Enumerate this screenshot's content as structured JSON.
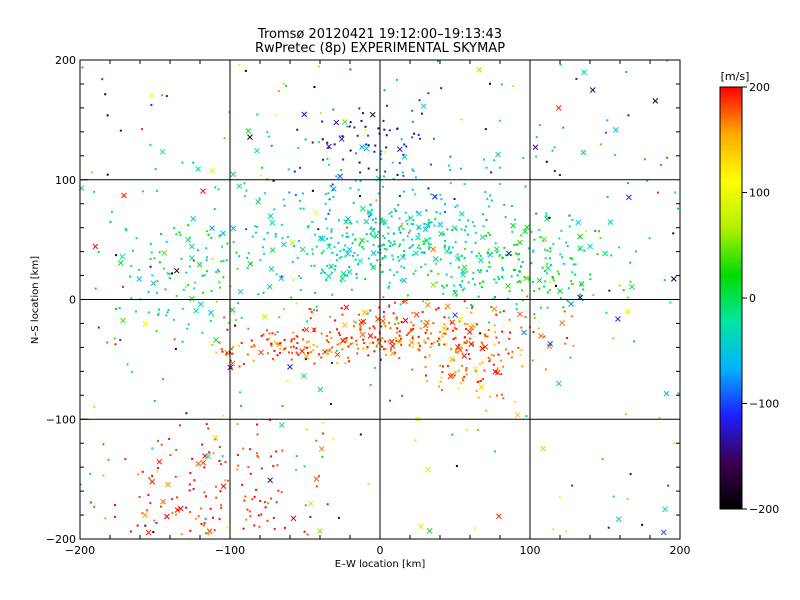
{
  "chart_data": {
    "type": "scatter",
    "title": "Tromsø 20120421 19:12:00–19:13:43",
    "subtitle": "RwPretec (8p) EXPERIMENTAL SKYMAP",
    "xlabel": "E–W location [km]",
    "ylabel": "N–S location [km]",
    "xlim": [
      -200,
      200
    ],
    "ylim": [
      -200,
      200
    ],
    "x_ticks": [
      "−200",
      "−100",
      "0",
      "100",
      "200"
    ],
    "y_ticks": [
      "200",
      "100",
      "0",
      "−100",
      "−200"
    ],
    "grid": true,
    "colorbar": {
      "label": "[m/s]",
      "range": [
        -200,
        200
      ],
      "ticks": [
        "200",
        "100",
        "0",
        "−100",
        "−200"
      ],
      "colormap": [
        "#000000",
        "#3b0050",
        "#1e1eff",
        "#00b4ff",
        "#00e6a0",
        "#00dc00",
        "#b4f000",
        "#ffff00",
        "#ffaa00",
        "#ff0000"
      ]
    },
    "clusters": [
      {
        "region": "north blue cluster",
        "x_center": -10,
        "y_center": 130,
        "x_spread": 30,
        "y_spread": 25,
        "velocity_mean": -120,
        "velocity_spread": 30
      },
      {
        "region": "central cyan band",
        "x_center": 0,
        "y_center": 45,
        "x_spread": 45,
        "y_spread": 25,
        "velocity_mean": -30,
        "velocity_spread": 20
      },
      {
        "region": "wide cyan area",
        "x_center": 0,
        "y_center": 60,
        "x_spread": 120,
        "y_spread": 60,
        "velocity_mean": -35,
        "velocity_spread": 25
      },
      {
        "region": "east green area",
        "x_center": 90,
        "y_center": 30,
        "x_spread": 50,
        "y_spread": 30,
        "velocity_mean": 5,
        "velocity_spread": 25
      },
      {
        "region": "west green area",
        "x_center": -130,
        "y_center": 20,
        "x_spread": 40,
        "y_spread": 40,
        "velocity_mean": 0,
        "velocity_spread": 30
      },
      {
        "region": "southern red arc",
        "x_center": 20,
        "y_center": -30,
        "x_spread": 70,
        "y_spread": 18,
        "velocity_mean": 180,
        "velocity_spread": 20
      },
      {
        "region": "red band west",
        "x_center": -60,
        "y_center": -40,
        "x_spread": 40,
        "y_spread": 12,
        "velocity_mean": 180,
        "velocity_spread": 20
      },
      {
        "region": "red band east",
        "x_center": 60,
        "y_center": -55,
        "x_spread": 25,
        "y_spread": 25,
        "velocity_mean": 170,
        "velocity_spread": 25
      },
      {
        "region": "southwest red patch",
        "x_center": -110,
        "y_center": -160,
        "x_spread": 55,
        "y_spread": 40,
        "velocity_mean": 190,
        "velocity_spread": 15
      }
    ],
    "marker_types": [
      "dot",
      "cross"
    ]
  }
}
